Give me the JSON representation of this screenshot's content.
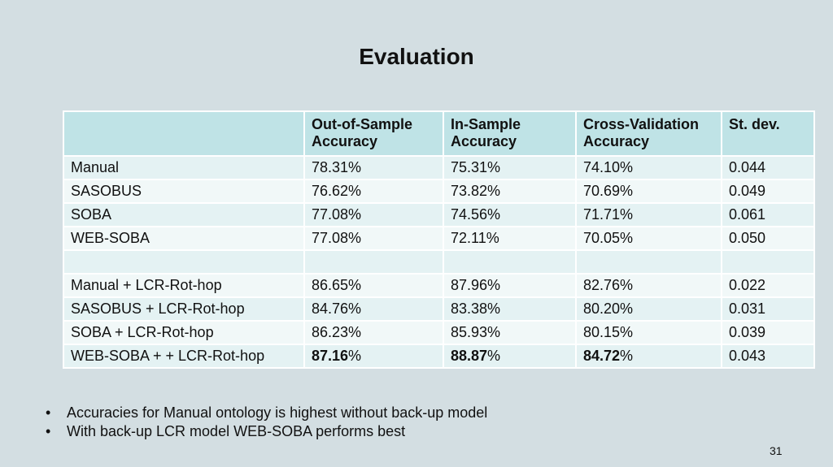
{
  "slide": {
    "title": "Evaluation",
    "page_number": "31"
  },
  "table": {
    "headers": [
      "",
      "Out-of-Sample Accuracy",
      "In-Sample Accuracy",
      "Cross-Validation Accuracy",
      "St. dev."
    ],
    "rows": [
      [
        "Manual",
        "78.31%",
        "75.31%",
        "74.10%",
        "0.044"
      ],
      [
        "SASOBUS",
        "76.62%",
        "73.82%",
        "70.69%",
        "0.049"
      ],
      [
        "SOBA",
        "77.08%",
        "74.56%",
        "71.71%",
        "0.061"
      ],
      [
        "WEB-SOBA",
        "77.08%",
        "72.11%",
        "70.05%",
        "0.050"
      ],
      [
        "",
        "",
        "",
        "",
        ""
      ],
      [
        "Manual + LCR-Rot-hop",
        "86.65%",
        "87.96%",
        "82.76%",
        "0.022"
      ],
      [
        "SASOBUS + LCR-Rot-hop",
        "84.76%",
        "83.38%",
        "80.20%",
        "0.031"
      ],
      [
        "SOBA + LCR-Rot-hop",
        "86.23%",
        "85.93%",
        "80.15%",
        "0.039"
      ],
      [
        "WEB-SOBA + + LCR-Rot-hop",
        {
          "bold": "87.16",
          "rest": "%"
        },
        {
          "bold": "88.87",
          "rest": "%"
        },
        {
          "bold": "84.72",
          "rest": "%"
        },
        "0.043"
      ]
    ]
  },
  "bullets": [
    "Accuracies for Manual ontology is highest without back-up model",
    "With back-up LCR model WEB-SOBA performs best"
  ],
  "bullet_glyph": "•"
}
